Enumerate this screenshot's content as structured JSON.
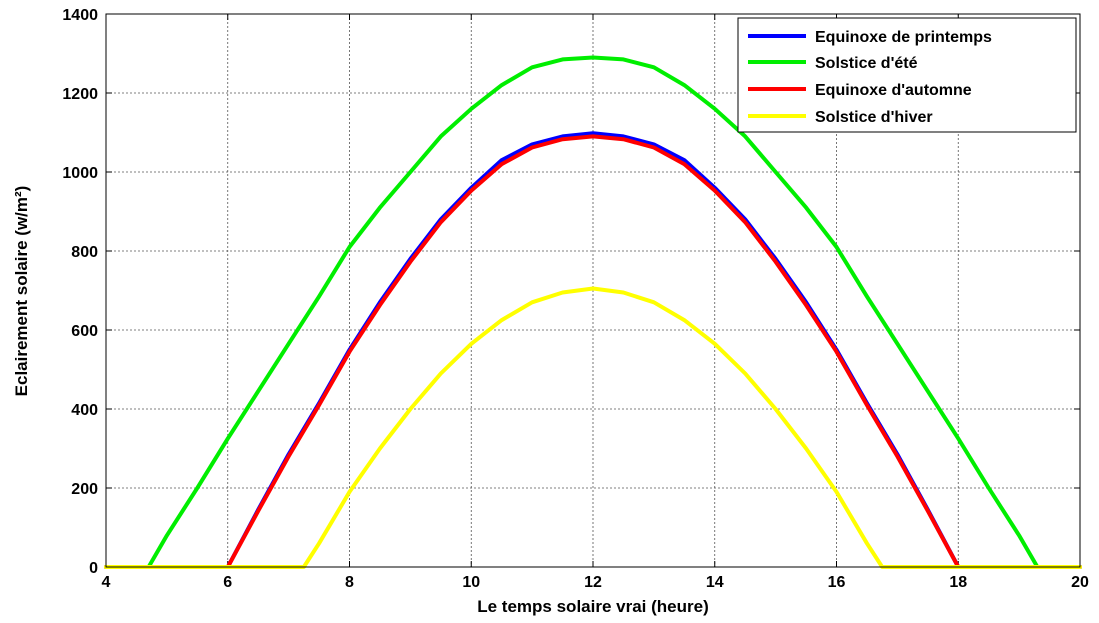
{
  "chart_data": {
    "type": "line",
    "xlabel": "Le temps solaire vrai (heure)",
    "ylabel": "Eclairement solaire (w/m²)",
    "xlim": [
      4,
      20
    ],
    "ylim": [
      0,
      1400
    ],
    "xticks": [
      4,
      6,
      8,
      10,
      12,
      14,
      16,
      18,
      20
    ],
    "yticks": [
      0,
      200,
      400,
      600,
      800,
      1000,
      1200,
      1400
    ],
    "grid": true,
    "legend_position": "top-right",
    "series": [
      {
        "name": "Equinoxe de printemps",
        "color": "#0000ff",
        "x": [
          4,
          6,
          6.5,
          7,
          7.5,
          8,
          8.5,
          9,
          9.5,
          10,
          10.5,
          11,
          11.5,
          12,
          12.5,
          13,
          13.5,
          14,
          14.5,
          15,
          15.5,
          16,
          16.5,
          17,
          17.5,
          18,
          20
        ],
        "y": [
          0,
          0,
          145,
          285,
          415,
          550,
          670,
          780,
          880,
          960,
          1030,
          1070,
          1090,
          1098,
          1090,
          1070,
          1030,
          960,
          880,
          780,
          670,
          550,
          415,
          285,
          145,
          0,
          0
        ]
      },
      {
        "name": "Solstice d'été",
        "color": "#00ee00",
        "x": [
          4,
          4.7,
          5,
          5.5,
          6,
          6.5,
          7,
          7.5,
          8,
          8.5,
          9,
          9.5,
          10,
          10.5,
          11,
          11.5,
          12,
          12.5,
          13,
          13.5,
          14,
          14.5,
          15,
          15.5,
          16,
          16.5,
          17,
          17.5,
          18,
          18.5,
          19,
          19.3,
          20
        ],
        "y": [
          0,
          0,
          80,
          200,
          325,
          445,
          565,
          685,
          810,
          910,
          1000,
          1090,
          1160,
          1220,
          1265,
          1285,
          1290,
          1285,
          1265,
          1220,
          1160,
          1090,
          1000,
          910,
          810,
          685,
          565,
          445,
          325,
          200,
          80,
          0,
          0
        ]
      },
      {
        "name": "Equinoxe d'automne",
        "color": "#ff0000",
        "x": [
          4,
          6,
          6.5,
          7,
          7.5,
          8,
          8.5,
          9,
          9.5,
          10,
          10.5,
          11,
          11.5,
          12,
          12.5,
          13,
          13.5,
          14,
          14.5,
          15,
          15.5,
          16,
          16.5,
          17,
          17.5,
          18,
          20
        ],
        "y": [
          0,
          0,
          142,
          280,
          410,
          545,
          663,
          773,
          873,
          953,
          1020,
          1062,
          1083,
          1090,
          1083,
          1062,
          1020,
          953,
          873,
          773,
          663,
          545,
          410,
          280,
          142,
          0,
          0
        ]
      },
      {
        "name": "Solstice d'hiver",
        "color": "#ffff00",
        "x": [
          4,
          7.25,
          7.5,
          8,
          8.5,
          9,
          9.5,
          10,
          10.5,
          11,
          11.5,
          12,
          12.5,
          13,
          13.5,
          14,
          14.5,
          15,
          15.5,
          16,
          16.5,
          16.75,
          20
        ],
        "y": [
          0,
          0,
          60,
          190,
          300,
          400,
          490,
          565,
          625,
          670,
          695,
          705,
          695,
          670,
          625,
          565,
          490,
          400,
          300,
          190,
          60,
          0,
          0
        ]
      }
    ]
  }
}
